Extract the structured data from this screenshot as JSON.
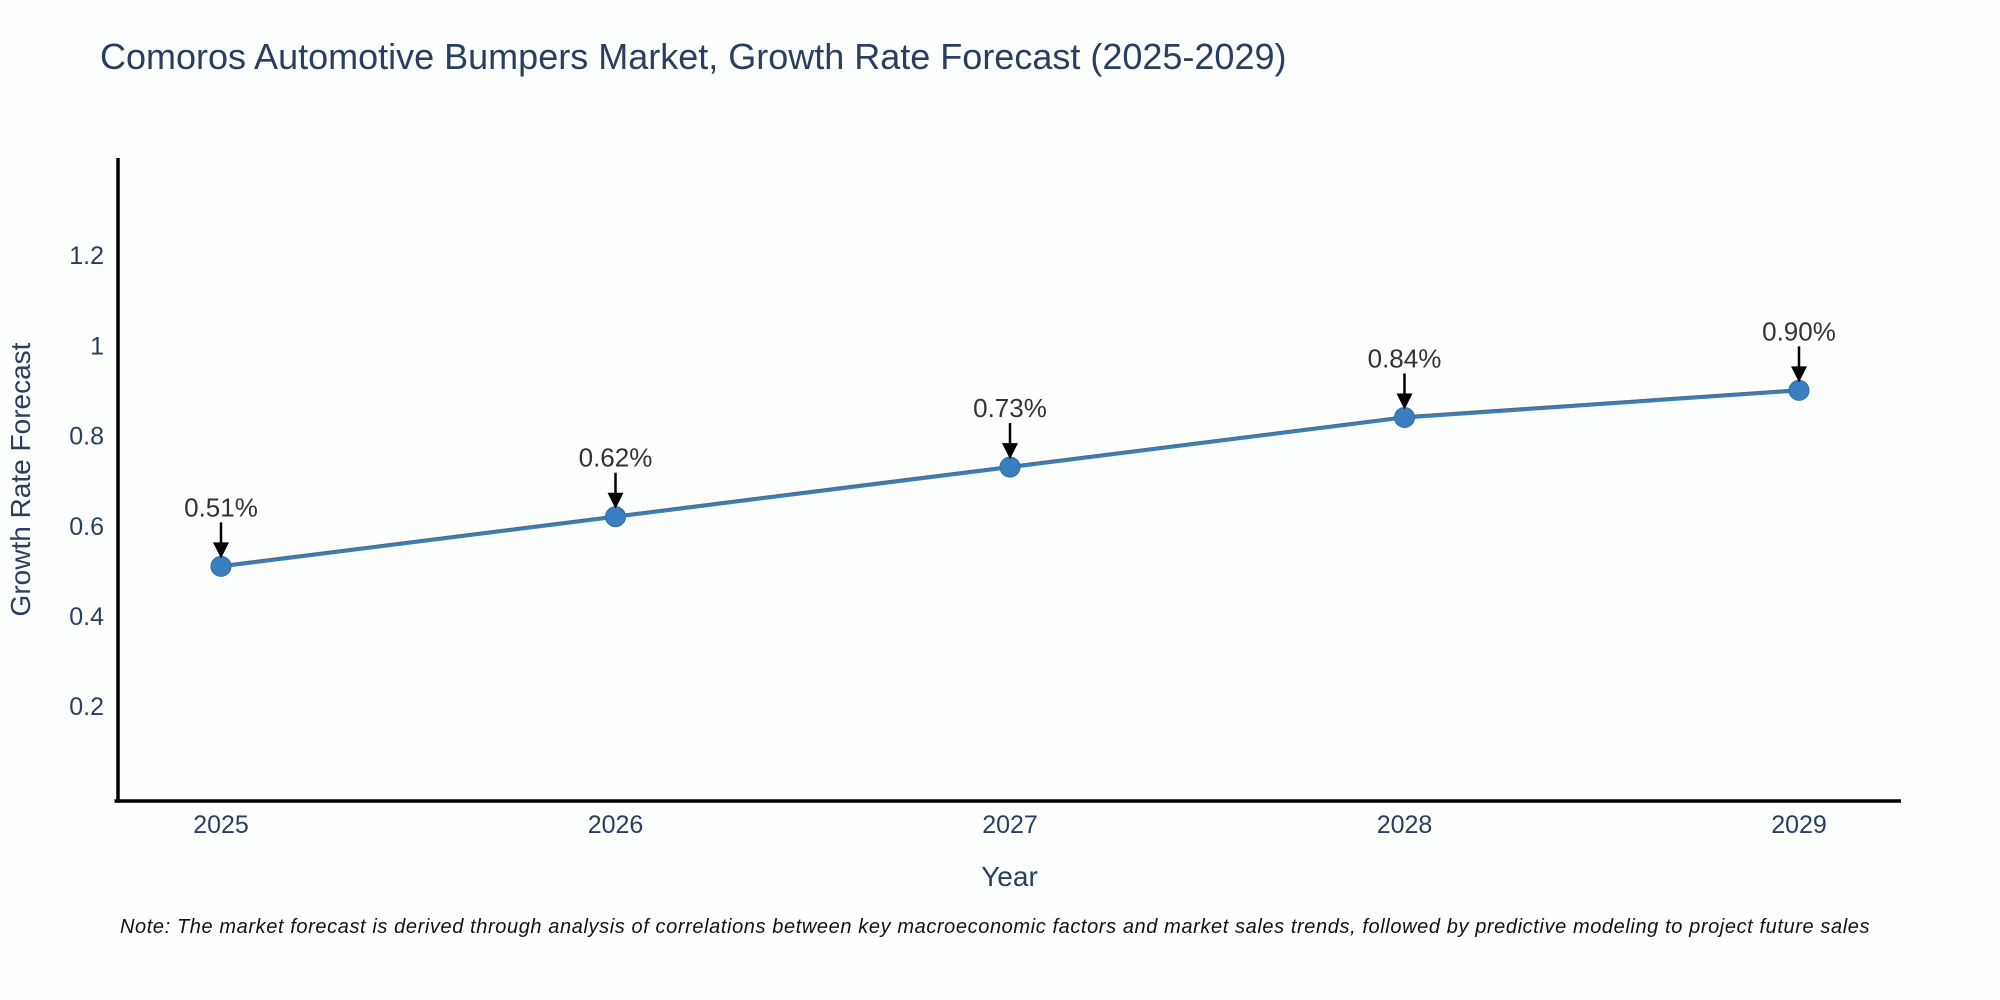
{
  "note": "Note: The market forecast is derived through analysis of correlations between key macroeconomic factors and market sales trends, followed by predictive modeling to project future sales",
  "chart_data": {
    "type": "line",
    "title": "Comoros Automotive Bumpers Market, Growth Rate Forecast (2025-2029)",
    "xlabel": "Year",
    "ylabel": "Growth Rate Forecast",
    "categories": [
      "2025",
      "2026",
      "2027",
      "2028",
      "2029"
    ],
    "series": [
      {
        "name": "Growth Rate Forecast",
        "values": [
          0.51,
          0.62,
          0.73,
          0.84,
          0.9
        ]
      }
    ],
    "point_labels": [
      "0.51%",
      "0.62%",
      "0.73%",
      "0.84%",
      "0.90%"
    ],
    "y_tick_values": [
      0.2,
      0.4,
      0.6,
      0.8,
      1.0,
      1.2
    ],
    "y_tick_labels": [
      "0.2",
      "0.4",
      "0.6",
      "0.8",
      "1",
      "1.2"
    ],
    "ylim": [
      -0.01,
      1.415
    ],
    "grid": false,
    "legend_position": "none",
    "annotations_have_arrows": true,
    "colors": {
      "line": "#3a7ebf",
      "line_edge": "#5c6773",
      "marker": "#3a7ebf",
      "marker_edge": "#2e6ca5",
      "axis_line": "#000000",
      "axis_text": "#2a3f5f",
      "annotation_text": "#333333",
      "arrow": "#000000"
    }
  }
}
